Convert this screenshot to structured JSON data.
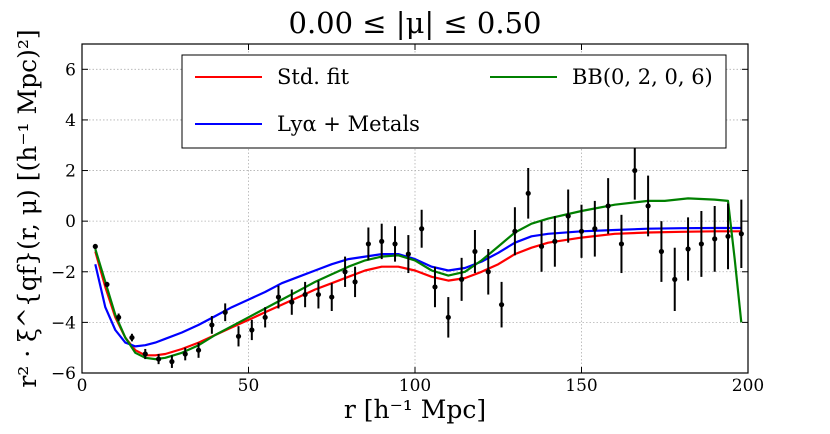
{
  "chart_data": {
    "type": "line",
    "title": "0.00 ≤ |μ| ≤ 0.50",
    "xlabel": "r [h⁻¹ Mpc]",
    "ylabel": "r² · ξ^{qf}(r, μ) [(h⁻¹ Mpc)²]",
    "xlim": [
      0,
      200
    ],
    "ylim": [
      -6,
      7
    ],
    "xticks": [
      0,
      50,
      100,
      150,
      200
    ],
    "xtick_labels": [
      "0",
      "50",
      "100",
      "150",
      "200"
    ],
    "yticks": [
      -6,
      -4,
      -2,
      0,
      2,
      4,
      6
    ],
    "ytick_labels": [
      "−6",
      "−4",
      "−2",
      "0",
      "2",
      "4",
      "6"
    ],
    "grid": true,
    "legend_position": "top",
    "series": [
      {
        "name": "Std. fit",
        "color": "#ff0000",
        "x": [
          4,
          7,
          10,
          13,
          16,
          19,
          22,
          25,
          30,
          35,
          40,
          45,
          50,
          55,
          60,
          65,
          70,
          75,
          80,
          85,
          90,
          95,
          100,
          105,
          110,
          115,
          120,
          125,
          130,
          135,
          140,
          150,
          160,
          170,
          180,
          190,
          198
        ],
        "y": [
          -1.2,
          -2.6,
          -3.8,
          -4.6,
          -5.1,
          -5.3,
          -5.3,
          -5.25,
          -5.05,
          -4.8,
          -4.5,
          -4.2,
          -3.9,
          -3.6,
          -3.3,
          -3.0,
          -2.7,
          -2.45,
          -2.2,
          -1.95,
          -1.8,
          -1.8,
          -1.95,
          -2.2,
          -2.35,
          -2.25,
          -2.0,
          -1.7,
          -1.3,
          -1.05,
          -0.85,
          -0.65,
          -0.5,
          -0.45,
          -0.42,
          -0.4,
          -0.4
        ]
      },
      {
        "name": "Lyα + Metals",
        "color": "#0000ff",
        "x": [
          4,
          7,
          10,
          13,
          16,
          19,
          22,
          25,
          30,
          35,
          40,
          45,
          50,
          55,
          60,
          65,
          70,
          75,
          80,
          85,
          90,
          95,
          100,
          105,
          110,
          115,
          120,
          125,
          130,
          135,
          140,
          150,
          160,
          170,
          180,
          190,
          198
        ],
        "y": [
          -1.7,
          -3.4,
          -4.3,
          -4.8,
          -4.95,
          -4.9,
          -4.8,
          -4.65,
          -4.4,
          -4.1,
          -3.75,
          -3.4,
          -3.1,
          -2.8,
          -2.45,
          -2.2,
          -1.95,
          -1.7,
          -1.5,
          -1.4,
          -1.3,
          -1.3,
          -1.5,
          -1.8,
          -1.95,
          -1.85,
          -1.6,
          -1.25,
          -0.85,
          -0.6,
          -0.5,
          -0.4,
          -0.35,
          -0.3,
          -0.28,
          -0.27,
          -0.27
        ]
      },
      {
        "name": "BB(0, 2, 0, 6)",
        "color": "#008000",
        "x": [
          4,
          7,
          10,
          13,
          16,
          19,
          22,
          25,
          30,
          35,
          40,
          45,
          50,
          55,
          60,
          65,
          70,
          75,
          80,
          85,
          90,
          95,
          100,
          105,
          110,
          115,
          120,
          125,
          130,
          135,
          140,
          150,
          160,
          170,
          175,
          182,
          190,
          194,
          196,
          198
        ],
        "y": [
          -1.1,
          -2.4,
          -3.7,
          -4.6,
          -5.2,
          -5.4,
          -5.45,
          -5.4,
          -5.2,
          -4.9,
          -4.5,
          -4.15,
          -3.8,
          -3.45,
          -3.1,
          -2.75,
          -2.4,
          -2.1,
          -1.8,
          -1.55,
          -1.4,
          -1.35,
          -1.55,
          -1.95,
          -2.15,
          -2.0,
          -1.55,
          -1.0,
          -0.45,
          -0.1,
          0.1,
          0.4,
          0.65,
          0.8,
          0.8,
          0.9,
          0.85,
          0.8,
          -1.5,
          -4.0
        ]
      }
    ],
    "data_points": {
      "name": "data",
      "color": "#000000",
      "points": [
        {
          "x": 4,
          "y": -1.0,
          "err": 0.1
        },
        {
          "x": 7.5,
          "y": -2.5,
          "err": 0.1
        },
        {
          "x": 11,
          "y": -3.8,
          "err": 0.15
        },
        {
          "x": 15,
          "y": -4.6,
          "err": 0.15
        },
        {
          "x": 19,
          "y": -5.25,
          "err": 0.2
        },
        {
          "x": 23,
          "y": -5.45,
          "err": 0.2
        },
        {
          "x": 27,
          "y": -5.55,
          "err": 0.25
        },
        {
          "x": 31,
          "y": -5.25,
          "err": 0.25
        },
        {
          "x": 35,
          "y": -5.1,
          "err": 0.3
        },
        {
          "x": 39,
          "y": -4.1,
          "err": 0.35
        },
        {
          "x": 43,
          "y": -3.6,
          "err": 0.35
        },
        {
          "x": 47,
          "y": -4.55,
          "err": 0.4
        },
        {
          "x": 51,
          "y": -4.3,
          "err": 0.4
        },
        {
          "x": 55,
          "y": -3.8,
          "err": 0.4
        },
        {
          "x": 59,
          "y": -3.0,
          "err": 0.45
        },
        {
          "x": 63,
          "y": -3.2,
          "err": 0.5
        },
        {
          "x": 67,
          "y": -2.9,
          "err": 0.5
        },
        {
          "x": 71,
          "y": -2.9,
          "err": 0.55
        },
        {
          "x": 75,
          "y": -3.0,
          "err": 0.55
        },
        {
          "x": 79,
          "y": -2.0,
          "err": 0.6
        },
        {
          "x": 82,
          "y": -2.4,
          "err": 0.6
        },
        {
          "x": 86,
          "y": -0.9,
          "err": 0.65
        },
        {
          "x": 90,
          "y": -0.8,
          "err": 0.7
        },
        {
          "x": 94,
          "y": -0.9,
          "err": 0.7
        },
        {
          "x": 98,
          "y": -1.3,
          "err": 0.75
        },
        {
          "x": 102,
          "y": -0.3,
          "err": 0.75
        },
        {
          "x": 106,
          "y": -2.6,
          "err": 0.8
        },
        {
          "x": 110,
          "y": -3.8,
          "err": 0.8
        },
        {
          "x": 114,
          "y": -2.3,
          "err": 0.85
        },
        {
          "x": 118,
          "y": -1.2,
          "err": 0.85
        },
        {
          "x": 122,
          "y": -2.0,
          "err": 0.9
        },
        {
          "x": 126,
          "y": -3.3,
          "err": 0.9
        },
        {
          "x": 130,
          "y": -0.4,
          "err": 0.95
        },
        {
          "x": 134,
          "y": 1.1,
          "err": 1.0
        },
        {
          "x": 138,
          "y": -1.0,
          "err": 1.0
        },
        {
          "x": 142,
          "y": -0.8,
          "err": 1.0
        },
        {
          "x": 146,
          "y": 0.2,
          "err": 1.05
        },
        {
          "x": 150,
          "y": -0.4,
          "err": 1.05
        },
        {
          "x": 154,
          "y": -0.3,
          "err": 1.1
        },
        {
          "x": 158,
          "y": 0.6,
          "err": 1.1
        },
        {
          "x": 162,
          "y": -0.9,
          "err": 1.15
        },
        {
          "x": 166,
          "y": 2.0,
          "err": 1.15
        },
        {
          "x": 170,
          "y": 0.6,
          "err": 1.2
        },
        {
          "x": 174,
          "y": -1.2,
          "err": 1.2
        },
        {
          "x": 178,
          "y": -2.3,
          "err": 1.25
        },
        {
          "x": 182,
          "y": -1.1,
          "err": 1.25
        },
        {
          "x": 186,
          "y": -0.9,
          "err": 1.3
        },
        {
          "x": 190,
          "y": -0.7,
          "err": 1.3
        },
        {
          "x": 194,
          "y": -0.6,
          "err": 1.3
        },
        {
          "x": 198,
          "y": -0.5,
          "err": 1.35
        }
      ]
    }
  }
}
